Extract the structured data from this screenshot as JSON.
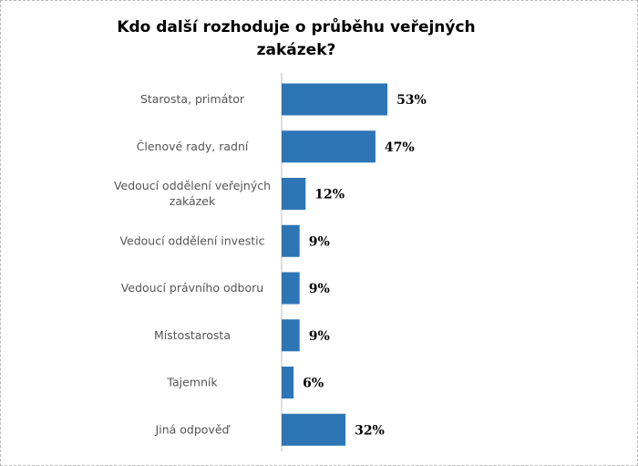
{
  "chart_data": {
    "type": "bar",
    "orientation": "horizontal",
    "title": "Kdo další rozhoduje o průběhu veřejných zakázek?",
    "categories": [
      "Starosta, primátor",
      "Členové rady, radní",
      "Vedoucí oddělení veřejných zakázek",
      "Vedoucí oddělení investic",
      "Vedoucí právního odboru",
      "Místostarosta",
      "Tajemník",
      "Jiná odpověď"
    ],
    "category_lines": [
      [
        "Starosta, primátor"
      ],
      [
        "Členové rady, radní"
      ],
      [
        "Vedoucí oddělení veřejných",
        "zakázek"
      ],
      [
        "Vedoucí oddělení investic"
      ],
      [
        "Vedoucí právního odboru"
      ],
      [
        "Místostarosta"
      ],
      [
        "Tajemník"
      ],
      [
        "Jiná odpověď"
      ]
    ],
    "values": [
      53,
      47,
      12,
      9,
      9,
      9,
      6,
      32
    ],
    "value_labels": [
      "53%",
      "47%",
      "12%",
      "9%",
      "9%",
      "9%",
      "6%",
      "32%"
    ],
    "bar_color": "#2e75b6",
    "xlim": [
      0,
      100
    ],
    "grid": false,
    "legend": "none"
  }
}
